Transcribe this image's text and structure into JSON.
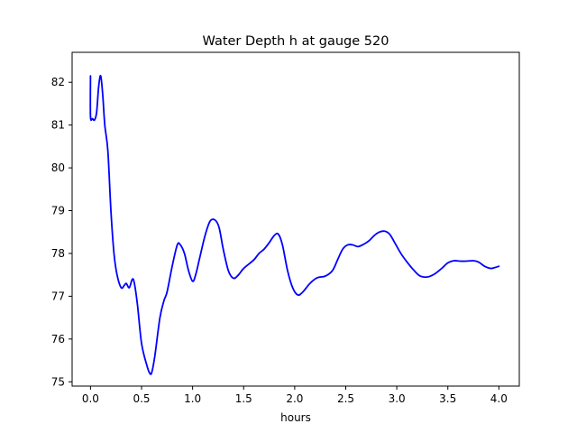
{
  "chart_data": {
    "type": "line",
    "title": "Water Depth h at gauge 520",
    "xlabel": "hours",
    "ylabel": "",
    "xlim": [
      -0.18,
      4.2
    ],
    "ylim": [
      74.9,
      82.7
    ],
    "x_ticks": [
      0.0,
      0.5,
      1.0,
      1.5,
      2.0,
      2.5,
      3.0,
      3.5,
      4.0
    ],
    "x_tick_labels": [
      "0.0",
      "0.5",
      "1.0",
      "1.5",
      "2.0",
      "2.5",
      "3.0",
      "3.5",
      "4.0"
    ],
    "y_ticks": [
      75,
      76,
      77,
      78,
      79,
      80,
      81,
      82
    ],
    "y_tick_labels": [
      "75",
      "76",
      "77",
      "78",
      "79",
      "80",
      "81",
      "82"
    ],
    "grid": false,
    "legend": "none",
    "series": [
      {
        "color": "#0000ff",
        "points": [
          [
            0.0,
            82.15
          ],
          [
            0.0,
            81.2
          ],
          [
            0.02,
            81.15
          ],
          [
            0.04,
            81.12
          ],
          [
            0.06,
            81.3
          ],
          [
            0.08,
            81.9
          ],
          [
            0.1,
            82.15
          ],
          [
            0.12,
            81.7
          ],
          [
            0.14,
            81.0
          ],
          [
            0.17,
            80.4
          ],
          [
            0.2,
            79.0
          ],
          [
            0.23,
            78.0
          ],
          [
            0.26,
            77.5
          ],
          [
            0.3,
            77.2
          ],
          [
            0.33,
            77.25
          ],
          [
            0.35,
            77.3
          ],
          [
            0.38,
            77.2
          ],
          [
            0.41,
            77.4
          ],
          [
            0.43,
            77.3
          ],
          [
            0.46,
            76.8
          ],
          [
            0.5,
            75.9
          ],
          [
            0.55,
            75.4
          ],
          [
            0.58,
            75.2
          ],
          [
            0.6,
            75.22
          ],
          [
            0.63,
            75.6
          ],
          [
            0.68,
            76.5
          ],
          [
            0.72,
            76.9
          ],
          [
            0.75,
            77.1
          ],
          [
            0.8,
            77.7
          ],
          [
            0.85,
            78.2
          ],
          [
            0.88,
            78.2
          ],
          [
            0.92,
            78.0
          ],
          [
            0.96,
            77.6
          ],
          [
            1.0,
            77.35
          ],
          [
            1.03,
            77.5
          ],
          [
            1.07,
            77.9
          ],
          [
            1.12,
            78.4
          ],
          [
            1.17,
            78.75
          ],
          [
            1.22,
            78.78
          ],
          [
            1.26,
            78.6
          ],
          [
            1.3,
            78.1
          ],
          [
            1.35,
            77.6
          ],
          [
            1.4,
            77.42
          ],
          [
            1.45,
            77.5
          ],
          [
            1.5,
            77.65
          ],
          [
            1.6,
            77.85
          ],
          [
            1.65,
            78.0
          ],
          [
            1.7,
            78.1
          ],
          [
            1.75,
            78.25
          ],
          [
            1.8,
            78.42
          ],
          [
            1.84,
            78.45
          ],
          [
            1.88,
            78.2
          ],
          [
            1.93,
            77.6
          ],
          [
            1.98,
            77.2
          ],
          [
            2.03,
            77.03
          ],
          [
            2.08,
            77.1
          ],
          [
            2.15,
            77.3
          ],
          [
            2.22,
            77.43
          ],
          [
            2.3,
            77.47
          ],
          [
            2.37,
            77.6
          ],
          [
            2.42,
            77.85
          ],
          [
            2.47,
            78.1
          ],
          [
            2.52,
            78.2
          ],
          [
            2.57,
            78.2
          ],
          [
            2.62,
            78.16
          ],
          [
            2.68,
            78.22
          ],
          [
            2.73,
            78.3
          ],
          [
            2.78,
            78.42
          ],
          [
            2.83,
            78.5
          ],
          [
            2.88,
            78.52
          ],
          [
            2.93,
            78.45
          ],
          [
            2.98,
            78.25
          ],
          [
            3.04,
            78.0
          ],
          [
            3.1,
            77.8
          ],
          [
            3.17,
            77.6
          ],
          [
            3.23,
            77.47
          ],
          [
            3.3,
            77.45
          ],
          [
            3.37,
            77.52
          ],
          [
            3.44,
            77.65
          ],
          [
            3.5,
            77.78
          ],
          [
            3.56,
            77.83
          ],
          [
            3.62,
            77.82
          ],
          [
            3.68,
            77.82
          ],
          [
            3.75,
            77.83
          ],
          [
            3.8,
            77.8
          ],
          [
            3.86,
            77.7
          ],
          [
            3.92,
            77.65
          ],
          [
            3.96,
            77.67
          ],
          [
            4.0,
            77.7
          ]
        ]
      }
    ]
  }
}
